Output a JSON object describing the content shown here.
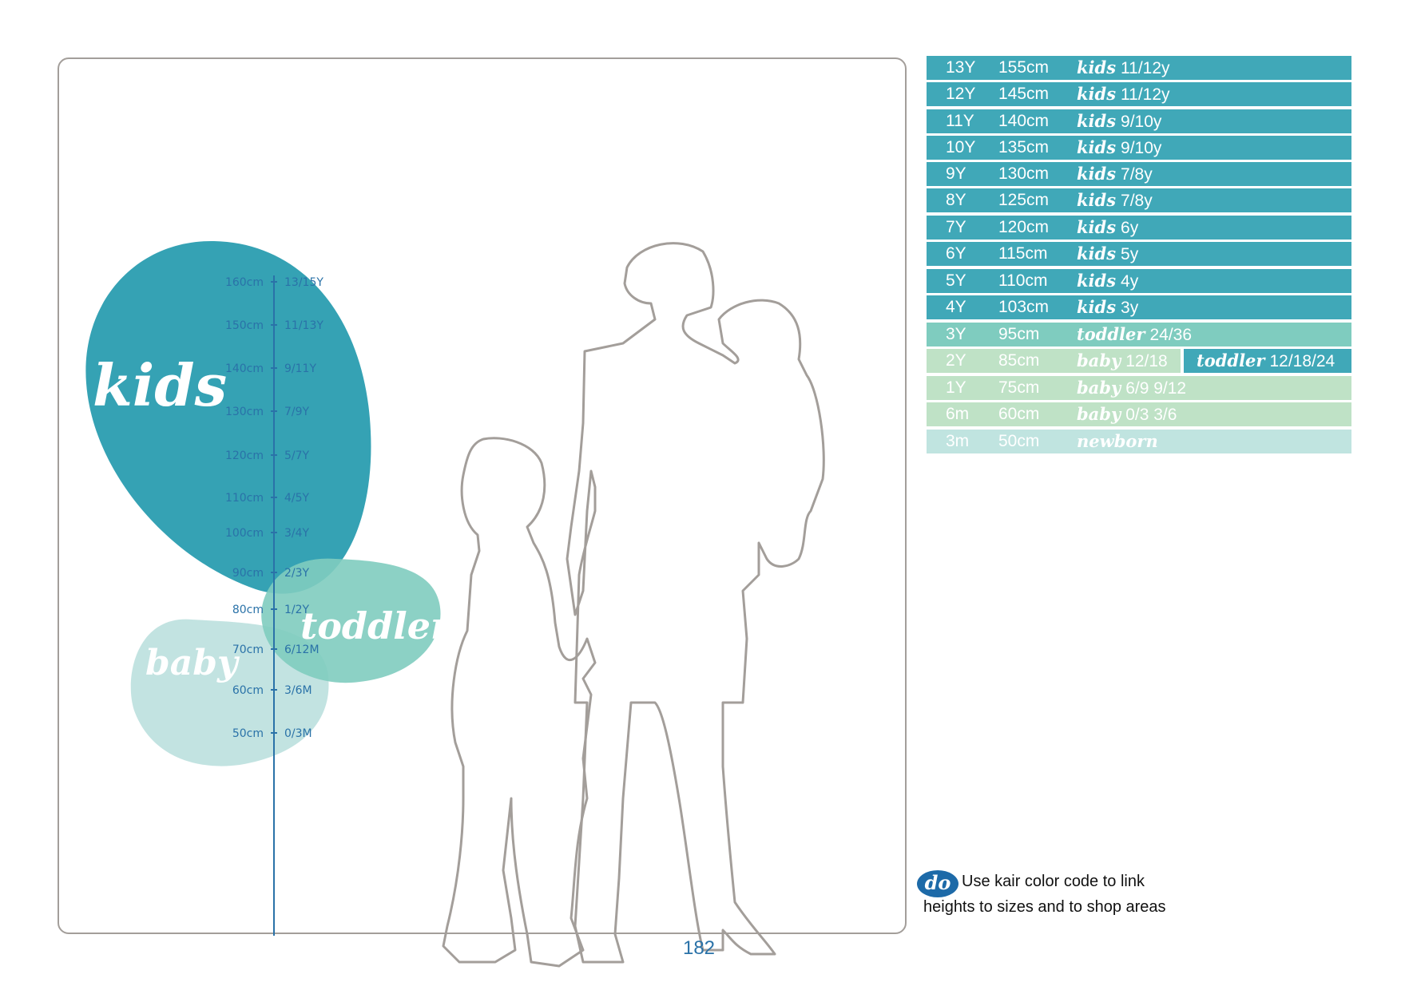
{
  "colors": {
    "kids": "#2a9db0",
    "kids_row": "#40a8b8",
    "toddler": "#7fccbf",
    "baby_row": "#bfe2c6",
    "baby_blob": "#bfe2df",
    "newborn": "#c0e4e0",
    "ruler": "#2a72a8",
    "silhouette": "#a39e9a",
    "do_badge": "#1d6aa8"
  },
  "zones": {
    "kids": "kids",
    "toddler": "toddler",
    "baby": "baby"
  },
  "ruler": [
    {
      "cm": "160cm",
      "age": "13/15Y"
    },
    {
      "cm": "150cm",
      "age": "11/13Y"
    },
    {
      "cm": "140cm",
      "age": "9/11Y"
    },
    {
      "cm": "130cm",
      "age": "7/9Y"
    },
    {
      "cm": "120cm",
      "age": "5/7Y"
    },
    {
      "cm": "110cm",
      "age": "4/5Y"
    },
    {
      "cm": "100cm",
      "age": "3/4Y"
    },
    {
      "cm": "90cm",
      "age": "2/3Y"
    },
    {
      "cm": "80cm",
      "age": "1/2Y"
    },
    {
      "cm": "70cm",
      "age": "6/12M"
    },
    {
      "cm": "60cm",
      "age": "3/6M"
    },
    {
      "cm": "50cm",
      "age": "0/3M"
    }
  ],
  "table": [
    {
      "age": "13Y",
      "cm": "155cm",
      "cat": "kids",
      "size": "11/12y",
      "band": "kids"
    },
    {
      "age": "12Y",
      "cm": "145cm",
      "cat": "kids",
      "size": "11/12y",
      "band": "kids"
    },
    {
      "age": "11Y",
      "cm": "140cm",
      "cat": "kids",
      "size": "9/10y",
      "band": "kids"
    },
    {
      "age": "10Y",
      "cm": "135cm",
      "cat": "kids",
      "size": "9/10y",
      "band": "kids"
    },
    {
      "age": "9Y",
      "cm": "130cm",
      "cat": "kids",
      "size": "7/8y",
      "band": "kids"
    },
    {
      "age": "8Y",
      "cm": "125cm",
      "cat": "kids",
      "size": "7/8y",
      "band": "kids"
    },
    {
      "age": "7Y",
      "cm": "120cm",
      "cat": "kids",
      "size": "6y",
      "band": "kids"
    },
    {
      "age": "6Y",
      "cm": "115cm",
      "cat": "kids",
      "size": "5y",
      "band": "kids"
    },
    {
      "age": "5Y",
      "cm": "110cm",
      "cat": "kids",
      "size": "4y",
      "band": "kids"
    },
    {
      "age": "4Y",
      "cm": "103cm",
      "cat": "kids",
      "size": "3y",
      "band": "kids"
    },
    {
      "age": "3Y",
      "cm": "95cm",
      "cat": "toddler",
      "size": "24/36",
      "band": "toddler"
    },
    {
      "age": "2Y",
      "cm": "85cm",
      "cat": "baby",
      "size": "12/18",
      "band": "baby",
      "cat2": "toddler",
      "size2": "12/18/24"
    },
    {
      "age": "1Y",
      "cm": "75cm",
      "cat": "baby",
      "size": "6/9 9/12",
      "band": "baby"
    },
    {
      "age": "6m",
      "cm": "60cm",
      "cat": "baby",
      "size": "0/3 3/6",
      "band": "baby"
    },
    {
      "age": "3m",
      "cm": "50cm",
      "cat": "newborn",
      "size": "",
      "band": "newborn"
    }
  ],
  "note": {
    "badge": "do",
    "text": "Use kair color code to link heights to sizes and to shop areas"
  },
  "page_number": "182"
}
